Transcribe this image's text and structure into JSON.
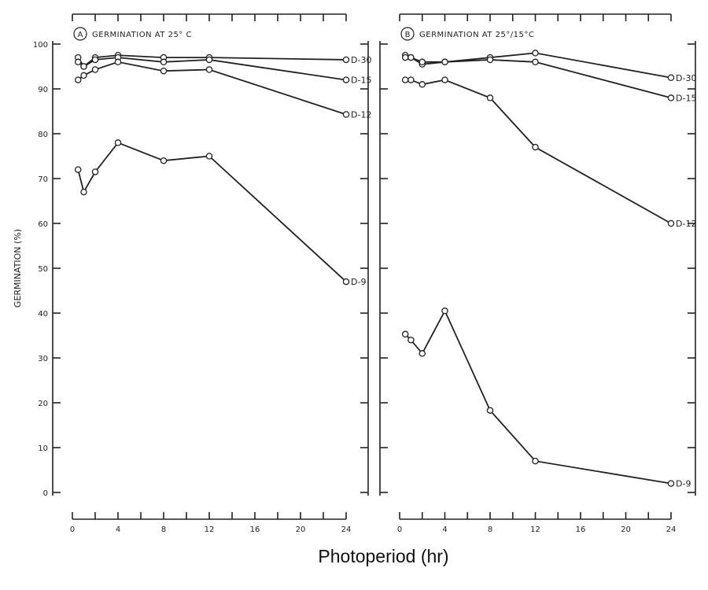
{
  "chart_data": [
    {
      "type": "line",
      "panel_label": "A",
      "title": "GERMINATION AT 25° C",
      "xlabel": "Photoperiod (hr)",
      "ylabel": "GERMINATION (%)",
      "xlim": [
        0,
        24
      ],
      "ylim": [
        0,
        100
      ],
      "x_ticks": [
        0,
        4,
        8,
        12,
        16,
        20,
        24
      ],
      "y_ticks": [
        0,
        10,
        20,
        30,
        40,
        50,
        60,
        70,
        80,
        90,
        100
      ],
      "grid": false,
      "x": [
        0.5,
        1,
        2,
        4,
        8,
        12,
        24
      ],
      "series": [
        {
          "name": "D-30",
          "values": [
            97,
            95,
            97,
            97.5,
            97,
            97,
            96.5
          ]
        },
        {
          "name": "D-15",
          "values": [
            96,
            95,
            96.5,
            97,
            96,
            96.5,
            92
          ]
        },
        {
          "name": "D-12",
          "values": [
            92,
            93,
            94.3,
            96,
            94,
            94.3,
            84.3
          ]
        },
        {
          "name": "D-9",
          "values": [
            72,
            67,
            71.5,
            78,
            74,
            75,
            47
          ]
        }
      ]
    },
    {
      "type": "line",
      "panel_label": "B",
      "title": "GERMINATION AT 25°/15°C",
      "xlim": [
        0,
        24
      ],
      "ylim": [
        0,
        100
      ],
      "x_ticks": [
        0,
        4,
        8,
        12,
        16,
        20,
        24
      ],
      "grid": false,
      "x": [
        0.5,
        1,
        2,
        4,
        8,
        12,
        24
      ],
      "series": [
        {
          "name": "D-30",
          "values": [
            97.5,
            97,
            95.5,
            96,
            97,
            98,
            92.5
          ]
        },
        {
          "name": "D-15",
          "values": [
            97,
            97,
            96,
            96,
            96.5,
            96,
            88
          ]
        },
        {
          "name": "D-12",
          "values": [
            92,
            92,
            91,
            92,
            88,
            77,
            60
          ]
        },
        {
          "name": "D-9",
          "values": [
            35.3,
            34,
            31,
            40.5,
            18.3,
            7,
            2
          ]
        }
      ]
    }
  ],
  "line_color": "#222222"
}
